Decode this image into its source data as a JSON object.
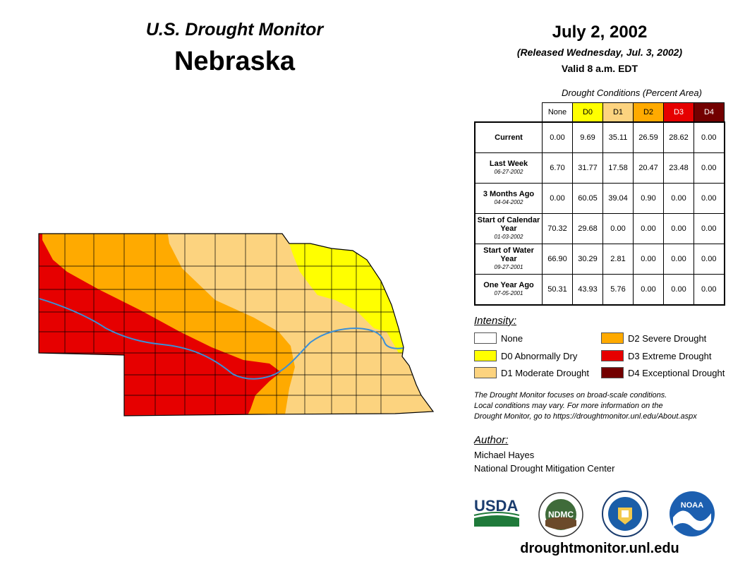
{
  "header": {
    "title": "U.S. Drought Monitor",
    "state": "Nebraska",
    "date": "July 2, 2002",
    "released": "(Released Wednesday, Jul. 3, 2002)",
    "valid": "Valid 8 a.m. EDT"
  },
  "table": {
    "caption": "Drought Conditions (Percent Area)",
    "columns": [
      "None",
      "D0",
      "D1",
      "D2",
      "D3",
      "D4"
    ],
    "rows": [
      {
        "label": "Current",
        "date": "",
        "values": [
          "0.00",
          "9.69",
          "35.11",
          "26.59",
          "28.62",
          "0.00"
        ]
      },
      {
        "label": "Last Week",
        "date": "06-27-2002",
        "values": [
          "6.70",
          "31.77",
          "17.58",
          "20.47",
          "23.48",
          "0.00"
        ]
      },
      {
        "label": "3 Months Ago",
        "date": "04-04-2002",
        "values": [
          "0.00",
          "60.05",
          "39.04",
          "0.90",
          "0.00",
          "0.00"
        ]
      },
      {
        "label": "Start of Calendar Year",
        "date": "01-03-2002",
        "values": [
          "70.32",
          "29.68",
          "0.00",
          "0.00",
          "0.00",
          "0.00"
        ]
      },
      {
        "label": "Start of Water Year",
        "date": "09-27-2001",
        "values": [
          "66.90",
          "30.29",
          "2.81",
          "0.00",
          "0.00",
          "0.00"
        ]
      },
      {
        "label": "One Year Ago",
        "date": "07-05-2001",
        "values": [
          "50.31",
          "43.93",
          "5.76",
          "0.00",
          "0.00",
          "0.00"
        ]
      }
    ]
  },
  "legend": {
    "heading": "Intensity:",
    "items": [
      {
        "label": "None",
        "color": "#ffffff"
      },
      {
        "label": "D0 Abnormally Dry",
        "color": "#ffff00"
      },
      {
        "label": "D1 Moderate Drought",
        "color": "#fcd37f"
      },
      {
        "label": "D2 Severe Drought",
        "color": "#ffaa00"
      },
      {
        "label": "D3 Extreme Drought",
        "color": "#e60000"
      },
      {
        "label": "D4 Exceptional Drought",
        "color": "#730000"
      }
    ]
  },
  "colors": {
    "d0": "#ffff00",
    "d1": "#fcd37f",
    "d2": "#ffaa00",
    "d3": "#e60000",
    "d4": "#730000",
    "river": "#3b8fd6"
  },
  "disclaimer": {
    "line1": "The Drought Monitor focuses on broad-scale conditions.",
    "line2": "Local conditions may vary. For more information on the",
    "line3": "Drought Monitor, go to https://droughtmonitor.unl.edu/About.aspx"
  },
  "author": {
    "heading": "Author:",
    "name": "Michael Hayes",
    "org": "National Drought Mitigation Center"
  },
  "logos": {
    "usda": "USDA",
    "ndmc": "NDMC",
    "noaa": "NOAA"
  },
  "website": "droughtmonitor.unl.edu"
}
